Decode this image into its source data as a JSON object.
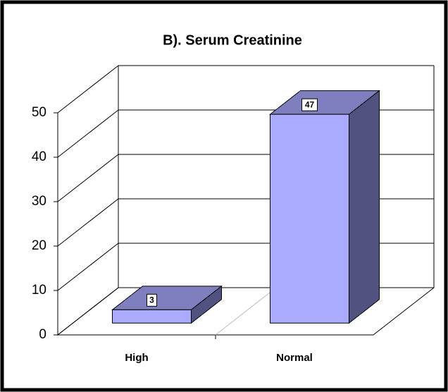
{
  "chart_data": {
    "type": "bar3d",
    "title": "B). Serum Creatinine",
    "categories": [
      "High",
      "Normal"
    ],
    "values": [
      3,
      47
    ],
    "color": "#aaaaff",
    "top_color": "#7f7fbf",
    "side_color": "#525280",
    "ylim": [
      0,
      50
    ],
    "yticks": [
      0,
      10,
      20,
      30,
      40,
      50
    ],
    "grid": true
  }
}
